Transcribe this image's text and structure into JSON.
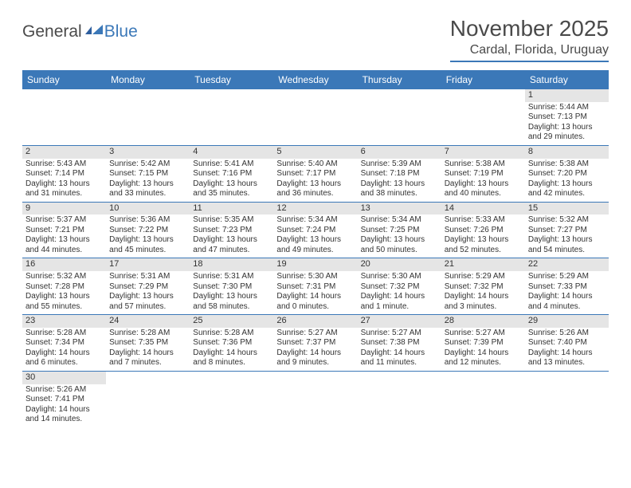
{
  "logo": {
    "general": "General",
    "blue": "Blue"
  },
  "title": "November 2025",
  "location": "Cardal, Florida, Uruguay",
  "weekdays": [
    "Sunday",
    "Monday",
    "Tuesday",
    "Wednesday",
    "Thursday",
    "Friday",
    "Saturday"
  ],
  "colors": {
    "accent": "#3b78b8",
    "header_text": "#4a4a4a",
    "daybar": "#e5e5e5",
    "text": "#333333"
  },
  "weeks": [
    [
      {
        "blank": true
      },
      {
        "blank": true
      },
      {
        "blank": true
      },
      {
        "blank": true
      },
      {
        "blank": true
      },
      {
        "blank": true
      },
      {
        "n": "1",
        "sr": "Sunrise: 5:44 AM",
        "ss": "Sunset: 7:13 PM",
        "dl": "Daylight: 13 hours and 29 minutes."
      }
    ],
    [
      {
        "n": "2",
        "sr": "Sunrise: 5:43 AM",
        "ss": "Sunset: 7:14 PM",
        "dl": "Daylight: 13 hours and 31 minutes."
      },
      {
        "n": "3",
        "sr": "Sunrise: 5:42 AM",
        "ss": "Sunset: 7:15 PM",
        "dl": "Daylight: 13 hours and 33 minutes."
      },
      {
        "n": "4",
        "sr": "Sunrise: 5:41 AM",
        "ss": "Sunset: 7:16 PM",
        "dl": "Daylight: 13 hours and 35 minutes."
      },
      {
        "n": "5",
        "sr": "Sunrise: 5:40 AM",
        "ss": "Sunset: 7:17 PM",
        "dl": "Daylight: 13 hours and 36 minutes."
      },
      {
        "n": "6",
        "sr": "Sunrise: 5:39 AM",
        "ss": "Sunset: 7:18 PM",
        "dl": "Daylight: 13 hours and 38 minutes."
      },
      {
        "n": "7",
        "sr": "Sunrise: 5:38 AM",
        "ss": "Sunset: 7:19 PM",
        "dl": "Daylight: 13 hours and 40 minutes."
      },
      {
        "n": "8",
        "sr": "Sunrise: 5:38 AM",
        "ss": "Sunset: 7:20 PM",
        "dl": "Daylight: 13 hours and 42 minutes."
      }
    ],
    [
      {
        "n": "9",
        "sr": "Sunrise: 5:37 AM",
        "ss": "Sunset: 7:21 PM",
        "dl": "Daylight: 13 hours and 44 minutes."
      },
      {
        "n": "10",
        "sr": "Sunrise: 5:36 AM",
        "ss": "Sunset: 7:22 PM",
        "dl": "Daylight: 13 hours and 45 minutes."
      },
      {
        "n": "11",
        "sr": "Sunrise: 5:35 AM",
        "ss": "Sunset: 7:23 PM",
        "dl": "Daylight: 13 hours and 47 minutes."
      },
      {
        "n": "12",
        "sr": "Sunrise: 5:34 AM",
        "ss": "Sunset: 7:24 PM",
        "dl": "Daylight: 13 hours and 49 minutes."
      },
      {
        "n": "13",
        "sr": "Sunrise: 5:34 AM",
        "ss": "Sunset: 7:25 PM",
        "dl": "Daylight: 13 hours and 50 minutes."
      },
      {
        "n": "14",
        "sr": "Sunrise: 5:33 AM",
        "ss": "Sunset: 7:26 PM",
        "dl": "Daylight: 13 hours and 52 minutes."
      },
      {
        "n": "15",
        "sr": "Sunrise: 5:32 AM",
        "ss": "Sunset: 7:27 PM",
        "dl": "Daylight: 13 hours and 54 minutes."
      }
    ],
    [
      {
        "n": "16",
        "sr": "Sunrise: 5:32 AM",
        "ss": "Sunset: 7:28 PM",
        "dl": "Daylight: 13 hours and 55 minutes."
      },
      {
        "n": "17",
        "sr": "Sunrise: 5:31 AM",
        "ss": "Sunset: 7:29 PM",
        "dl": "Daylight: 13 hours and 57 minutes."
      },
      {
        "n": "18",
        "sr": "Sunrise: 5:31 AM",
        "ss": "Sunset: 7:30 PM",
        "dl": "Daylight: 13 hours and 58 minutes."
      },
      {
        "n": "19",
        "sr": "Sunrise: 5:30 AM",
        "ss": "Sunset: 7:31 PM",
        "dl": "Daylight: 14 hours and 0 minutes."
      },
      {
        "n": "20",
        "sr": "Sunrise: 5:30 AM",
        "ss": "Sunset: 7:32 PM",
        "dl": "Daylight: 14 hours and 1 minute."
      },
      {
        "n": "21",
        "sr": "Sunrise: 5:29 AM",
        "ss": "Sunset: 7:32 PM",
        "dl": "Daylight: 14 hours and 3 minutes."
      },
      {
        "n": "22",
        "sr": "Sunrise: 5:29 AM",
        "ss": "Sunset: 7:33 PM",
        "dl": "Daylight: 14 hours and 4 minutes."
      }
    ],
    [
      {
        "n": "23",
        "sr": "Sunrise: 5:28 AM",
        "ss": "Sunset: 7:34 PM",
        "dl": "Daylight: 14 hours and 6 minutes."
      },
      {
        "n": "24",
        "sr": "Sunrise: 5:28 AM",
        "ss": "Sunset: 7:35 PM",
        "dl": "Daylight: 14 hours and 7 minutes."
      },
      {
        "n": "25",
        "sr": "Sunrise: 5:28 AM",
        "ss": "Sunset: 7:36 PM",
        "dl": "Daylight: 14 hours and 8 minutes."
      },
      {
        "n": "26",
        "sr": "Sunrise: 5:27 AM",
        "ss": "Sunset: 7:37 PM",
        "dl": "Daylight: 14 hours and 9 minutes."
      },
      {
        "n": "27",
        "sr": "Sunrise: 5:27 AM",
        "ss": "Sunset: 7:38 PM",
        "dl": "Daylight: 14 hours and 11 minutes."
      },
      {
        "n": "28",
        "sr": "Sunrise: 5:27 AM",
        "ss": "Sunset: 7:39 PM",
        "dl": "Daylight: 14 hours and 12 minutes."
      },
      {
        "n": "29",
        "sr": "Sunrise: 5:26 AM",
        "ss": "Sunset: 7:40 PM",
        "dl": "Daylight: 14 hours and 13 minutes."
      }
    ],
    [
      {
        "n": "30",
        "sr": "Sunrise: 5:26 AM",
        "ss": "Sunset: 7:41 PM",
        "dl": "Daylight: 14 hours and 14 minutes."
      },
      {
        "blank": true
      },
      {
        "blank": true
      },
      {
        "blank": true
      },
      {
        "blank": true
      },
      {
        "blank": true
      },
      {
        "blank": true
      }
    ]
  ]
}
